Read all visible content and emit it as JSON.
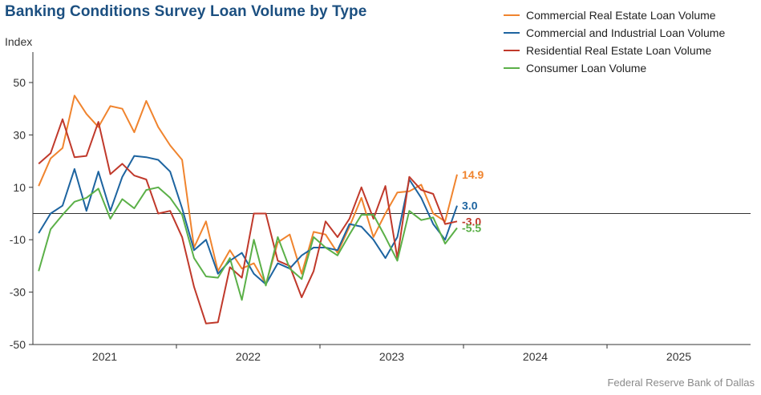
{
  "title": "Banking Conditions Survey Loan Volume by Type",
  "source": "Federal Reserve Bank of Dallas",
  "chart_data": {
    "type": "line",
    "title": "Banking Conditions Survey Loan Volume by Type",
    "ylabel": "Index",
    "xlabel": "",
    "ylim": [
      -50,
      50
    ],
    "yticks": [
      50,
      30,
      10,
      -10,
      -30,
      -50
    ],
    "xlim": [
      2020.5,
      2025.5
    ],
    "xticks": [
      {
        "label": "2021",
        "value": 2021
      },
      {
        "label": "2022",
        "value": 2022
      },
      {
        "label": "2023",
        "value": 2023
      },
      {
        "label": "2024",
        "value": 2024
      },
      {
        "label": "2025",
        "value": 2025
      }
    ],
    "x_start": 2020.54,
    "x_step": 0.0833,
    "zero_line": true,
    "grid": false,
    "legend_position": "top-right",
    "series": [
      {
        "name": "Commercial Real Estate Loan Volume",
        "color": "#f0842e",
        "values": [
          10.5,
          21,
          25,
          45,
          38,
          33,
          41,
          40,
          31,
          43,
          33,
          26,
          20.5,
          -13,
          -3,
          -22,
          -14,
          -21,
          -19,
          -27,
          -11,
          -8,
          -23,
          -7,
          -8,
          -15,
          -5,
          6,
          -9,
          0,
          8,
          8.5,
          11,
          0,
          -3,
          14.9
        ],
        "end_label": "14.9"
      },
      {
        "name": "Commercial and Industrial Loan Volume",
        "color": "#1d64a0",
        "values": [
          -7.5,
          0,
          3,
          17,
          1,
          16,
          1,
          14,
          22,
          21.5,
          20.5,
          16,
          2,
          -14,
          -10,
          -23,
          -18,
          -15,
          -23,
          -27,
          -19,
          -21,
          -16,
          -13,
          -13,
          -14,
          -4,
          -5,
          -10,
          -17,
          -9,
          13,
          6,
          -4,
          -10,
          3.0
        ],
        "end_label": "3.0"
      },
      {
        "name": "Residential Real Estate Loan Volume",
        "color": "#c0392b",
        "values": [
          19,
          23,
          36,
          21.5,
          22,
          35,
          15,
          19,
          14.5,
          13,
          0,
          1,
          -9,
          -28,
          -42,
          -41.5,
          -20.5,
          -24.5,
          0,
          0,
          -18,
          -20,
          -32,
          -22,
          -3,
          -9,
          -2,
          10,
          -2,
          10.5,
          -17,
          14,
          9,
          7.5,
          -4,
          -3.0
        ],
        "end_label": "-3.0"
      },
      {
        "name": "Consumer Loan Volume",
        "color": "#5bb048",
        "values": [
          -22,
          -6,
          -0.5,
          4.5,
          6,
          9.5,
          -2,
          5.5,
          2,
          9,
          10,
          6,
          -0.5,
          -17,
          -24,
          -24.5,
          -17,
          -33,
          -10,
          -27.5,
          -9,
          -21,
          -25,
          -9,
          -13,
          -16,
          -8,
          -0.5,
          -0.5,
          -9,
          -18,
          1,
          -2.5,
          -1.5,
          -11.5,
          -5.5
        ],
        "end_label": "-5.5"
      }
    ]
  }
}
